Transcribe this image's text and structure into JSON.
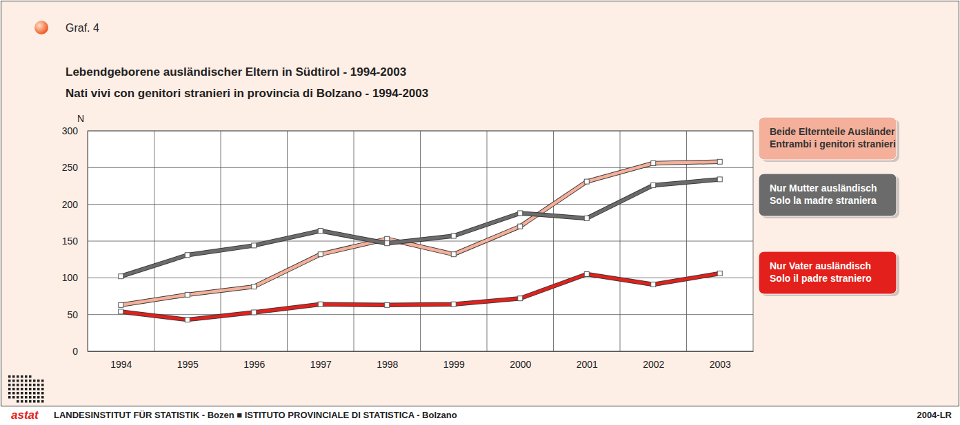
{
  "chart_data": {
    "type": "line",
    "figure_label": "Graf. 4",
    "title": "Lebendgeborene ausländischer Eltern in Südtirol - 1994-2003",
    "subtitle": "Nati vivi con genitori stranieri in provincia di Bolzano - 1994-2003",
    "y_label": "N",
    "categories": [
      "1994",
      "1995",
      "1996",
      "1997",
      "1998",
      "1999",
      "2000",
      "2001",
      "2002",
      "2003"
    ],
    "series": [
      {
        "name": "Beide Elternteile Ausländer\nEntrambi i genitori stranieri",
        "color": "#f4b09a",
        "values": [
          63,
          77,
          88,
          132,
          153,
          132,
          170,
          231,
          256,
          258
        ]
      },
      {
        "name": "Nur Mutter ausländisch\nSolo la madre straniera",
        "color": "#6b6b6b",
        "values": [
          102,
          131,
          144,
          164,
          147,
          157,
          188,
          181,
          226,
          234
        ]
      },
      {
        "name": "Nur Vater ausländisch\nSolo il padre straniero",
        "color": "#e3201b",
        "values": [
          54,
          43,
          53,
          64,
          63,
          64,
          72,
          105,
          91,
          106
        ]
      }
    ],
    "ylim": [
      0,
      300
    ],
    "yticks": [
      0,
      50,
      100,
      150,
      200,
      250,
      300
    ],
    "grid": true,
    "legend": "right",
    "marker": "square",
    "source": "LANDESINSTITUT FÜR STATISTIK - Bozen ■ ISTITUTO PROVINCIALE DI STATISTICA - Bolzano",
    "source_code": "2004-LR",
    "logo": "astat"
  }
}
